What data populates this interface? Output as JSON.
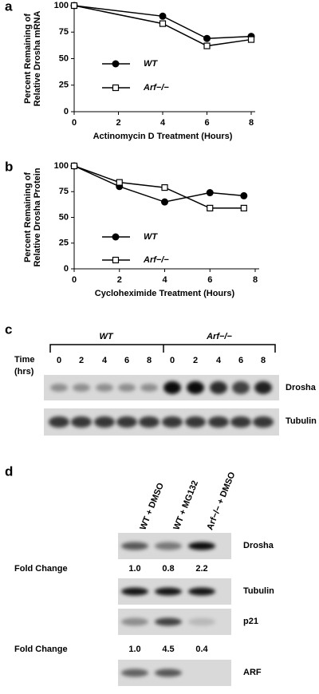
{
  "chart_data": [
    {
      "type": "line",
      "label": "a",
      "ylabel": [
        "Percent Remaining of",
        "Relative Drosha mRNA"
      ],
      "xlabel": "Actinomycin D Treatment (Hours)",
      "xlim": [
        0,
        8
      ],
      "xticks": [
        0,
        2,
        4,
        6,
        8
      ],
      "ylim": [
        0,
        100
      ],
      "yticks": [
        0,
        25,
        50,
        75,
        100
      ],
      "x": [
        0,
        4,
        6,
        8
      ],
      "series": [
        {
          "name": "WT",
          "color": "#000000",
          "marker": "circle",
          "values": [
            100,
            90,
            69,
            71
          ]
        },
        {
          "name": "Arf−/−",
          "color": "#000000",
          "marker": "square",
          "values": [
            100,
            83,
            62,
            68
          ]
        }
      ]
    },
    {
      "type": "line",
      "label": "b",
      "ylabel": [
        "Percent Remaining of",
        "Relative Drosha Protein"
      ],
      "xlabel": "Cycloheximide Treatment  (Hours)",
      "xlim": [
        0,
        8
      ],
      "xticks": [
        0,
        2,
        4,
        6,
        8
      ],
      "ylim": [
        0,
        100
      ],
      "yticks": [
        0,
        25,
        50,
        75,
        100
      ],
      "x": [
        0,
        2,
        4,
        6,
        7.5
      ],
      "series": [
        {
          "name": "WT",
          "color": "#000000",
          "marker": "circle",
          "values": [
            100,
            80,
            65,
            74,
            71
          ]
        },
        {
          "name": "Arf−/−",
          "color": "#000000",
          "marker": "square",
          "values": [
            100,
            84,
            79,
            59,
            59
          ]
        }
      ]
    }
  ],
  "panel_c": {
    "label": "c",
    "groups": [
      "WT",
      "Arf−/−"
    ],
    "time_label": [
      "Time",
      "(hrs)"
    ],
    "times": [
      "0",
      "2",
      "4",
      "6",
      "8",
      "0",
      "2",
      "4",
      "6",
      "8"
    ],
    "rows": [
      "Drosha",
      "Tubulin"
    ]
  },
  "panel_d": {
    "label": "d",
    "lanes": [
      "WT + DMSO",
      "WT + MG132",
      "Arf−/− + DMSO"
    ],
    "rows": [
      "Drosha",
      "Tubulin",
      "p21",
      "ARF"
    ],
    "fold_label": "Fold Change",
    "fold_drosha": [
      "1.0",
      "0.8",
      "2.2"
    ],
    "fold_p21": [
      "1.0",
      "4.5",
      "0.4"
    ]
  }
}
